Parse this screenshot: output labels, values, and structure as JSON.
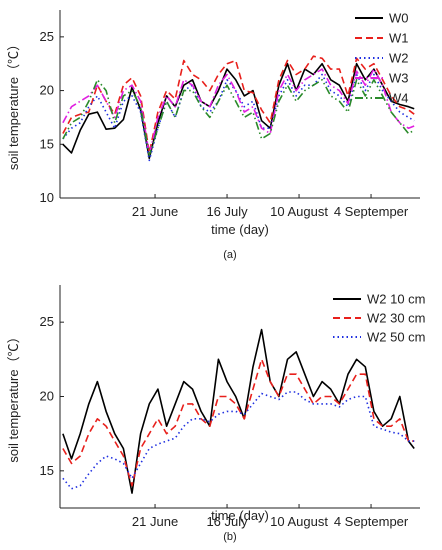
{
  "chart_data": [
    {
      "type": "line",
      "caption": "(a)",
      "xlabel": "time (day)",
      "ylabel": "soil temperature（℃）",
      "ylim": [
        10,
        27.5
      ],
      "yticks": [
        10,
        15,
        20,
        25
      ],
      "x": [
        1,
        4,
        7,
        10,
        13,
        16,
        19,
        22,
        25,
        28,
        31,
        34,
        37,
        40,
        43,
        46,
        49,
        52,
        55,
        58,
        61,
        64,
        67,
        70,
        73,
        76,
        79,
        82,
        85,
        88,
        91,
        94,
        97,
        100,
        103,
        106
      ],
      "x_tick_labels": [
        {
          "x": 33,
          "label": "21 June"
        },
        {
          "x": 58,
          "label": "16 July"
        },
        {
          "x": 83,
          "label": "10 August"
        },
        {
          "x": 108,
          "label": "4 Septemper"
        }
      ],
      "xlim": [
        0,
        125
      ],
      "legend_position": "top-right",
      "series": [
        {
          "name": "W0",
          "color": "#000000",
          "dash": "solid",
          "values": [
            15.0,
            14.2,
            16.3,
            17.8,
            18.0,
            16.4,
            16.5,
            17.3,
            20.3,
            18.2,
            13.7,
            17.0,
            19.5,
            18.5,
            20.5,
            21.0,
            19.0,
            18.5,
            20.0,
            22.0,
            21.0,
            19.5,
            20.0,
            17.2,
            16.5,
            20.5,
            22.5,
            20.0,
            22.0,
            21.5,
            22.5,
            21.0,
            20.5,
            19.0,
            22.5,
            21.0
          ]
        },
        {
          "name": "W1",
          "color": "#e8201c",
          "dash": "dashed",
          "values": [
            16.0,
            17.5,
            17.8,
            18.0,
            20.5,
            19.0,
            17.8,
            20.5,
            21.2,
            19.5,
            14.2,
            18.0,
            20.0,
            19.2,
            22.8,
            21.5,
            21.0,
            20.0,
            21.5,
            22.5,
            22.8,
            20.0,
            19.8,
            18.2,
            17.0,
            21.0,
            22.8,
            21.5,
            22.0,
            23.2,
            23.0,
            22.0,
            22.0,
            19.5,
            23.0,
            22.0
          ]
        },
        {
          "name": "W2",
          "color": "#1f2fe0",
          "dash": "dotted",
          "values": [
            15.5,
            16.5,
            17.0,
            18.5,
            19.5,
            18.0,
            16.5,
            19.0,
            19.5,
            18.0,
            13.5,
            16.5,
            19.0,
            17.5,
            20.0,
            20.5,
            18.5,
            18.0,
            19.0,
            21.0,
            20.0,
            18.5,
            19.0,
            16.5,
            16.5,
            19.5,
            21.0,
            19.5,
            20.5,
            20.5,
            21.5,
            20.0,
            19.5,
            18.5,
            21.5,
            20.0
          ]
        },
        {
          "name": "W3",
          "color": "#e020e0",
          "dash": "dashdot",
          "values": [
            17.0,
            18.5,
            19.0,
            19.5,
            20.5,
            19.0,
            17.5,
            20.0,
            20.5,
            19.0,
            14.0,
            17.5,
            19.5,
            18.5,
            21.0,
            20.5,
            19.0,
            18.5,
            20.5,
            21.5,
            20.0,
            18.0,
            18.5,
            16.5,
            16.0,
            20.0,
            21.5,
            20.0,
            21.0,
            21.5,
            22.0,
            20.5,
            20.0,
            18.8,
            21.8,
            20.5
          ]
        },
        {
          "name": "W4",
          "color": "#2a8a2a",
          "dash": "dashdotdot",
          "values": [
            15.5,
            17.0,
            17.5,
            19.0,
            21.0,
            20.0,
            17.0,
            19.5,
            20.0,
            18.5,
            14.0,
            16.5,
            19.0,
            17.5,
            20.0,
            20.0,
            18.5,
            17.5,
            19.0,
            20.5,
            19.0,
            17.5,
            18.0,
            15.5,
            16.0,
            19.0,
            20.5,
            19.0,
            20.0,
            20.5,
            21.0,
            19.5,
            19.0,
            18.0,
            21.0,
            19.5
          ]
        }
      ],
      "series_tail_x": [
        109,
        112,
        115,
        118,
        121,
        123
      ],
      "series_tail": {
        "W0": [
          22.0,
          20.5,
          19.0,
          18.7,
          18.5,
          18.3
        ],
        "W1": [
          22.5,
          21.0,
          19.5,
          18.5,
          18.2,
          17.8
        ],
        "W2": [
          21.5,
          20.0,
          19.0,
          18.0,
          17.5,
          17.2
        ],
        "W3": [
          22.0,
          20.5,
          18.0,
          17.0,
          16.5,
          16.7
        ],
        "W4": [
          21.0,
          19.5,
          18.0,
          17.0,
          16.0,
          16.3
        ]
      }
    },
    {
      "type": "line",
      "caption": "(b)",
      "xlabel": "time (day)",
      "ylabel": "soil temperature（℃）",
      "ylim": [
        12.5,
        27.5
      ],
      "yticks": [
        15,
        20,
        25
      ],
      "x": [
        1,
        4,
        7,
        10,
        13,
        16,
        19,
        22,
        25,
        28,
        31,
        34,
        37,
        40,
        43,
        46,
        49,
        52,
        55,
        58,
        61,
        64,
        67,
        70,
        73,
        76,
        79,
        82,
        85,
        88,
        91,
        94,
        97,
        100,
        103,
        106,
        109,
        112,
        115,
        118,
        121,
        123
      ],
      "x_tick_labels": [
        {
          "x": 33,
          "label": "21 June"
        },
        {
          "x": 58,
          "label": "16 July"
        },
        {
          "x": 83,
          "label": "10 August"
        },
        {
          "x": 108,
          "label": "4 Septemper"
        }
      ],
      "xlim": [
        0,
        125
      ],
      "legend_position": "top-right",
      "series": [
        {
          "name": "W2 10 cm",
          "color": "#000000",
          "dash": "solid",
          "values": [
            17.5,
            15.8,
            17.5,
            19.5,
            21.0,
            19.0,
            17.5,
            16.5,
            13.5,
            17.5,
            19.5,
            20.5,
            18.0,
            19.5,
            21.0,
            20.5,
            19.0,
            18.0,
            22.5,
            21.0,
            20.0,
            18.5,
            22.0,
            24.5,
            21.0,
            20.0,
            22.5,
            23.0,
            21.5,
            20.0,
            21.0,
            20.5,
            19.5,
            21.5,
            22.5,
            22.0,
            19.0,
            18.0,
            18.5,
            20.0,
            17.0,
            16.5
          ]
        },
        {
          "name": "W2 30 cm",
          "color": "#e8201c",
          "dash": "dashed",
          "values": [
            16.5,
            15.5,
            16.0,
            17.5,
            18.5,
            18.0,
            17.0,
            16.0,
            14.0,
            16.5,
            17.5,
            18.5,
            17.5,
            18.0,
            19.5,
            19.5,
            18.5,
            18.0,
            20.0,
            20.0,
            19.5,
            18.5,
            20.5,
            22.5,
            21.0,
            20.0,
            21.5,
            21.5,
            20.5,
            19.5,
            20.0,
            20.0,
            19.5,
            20.5,
            21.5,
            21.5,
            18.5,
            18.0,
            18.0,
            18.5,
            17.0,
            17.0
          ]
        },
        {
          "name": "W2 50 cm",
          "color": "#1f2fe0",
          "dash": "dotted",
          "values": [
            14.5,
            13.8,
            14.0,
            14.8,
            15.5,
            16.0,
            15.8,
            15.5,
            14.5,
            15.5,
            16.5,
            16.8,
            17.0,
            17.2,
            18.0,
            18.5,
            18.5,
            18.3,
            18.8,
            19.0,
            19.0,
            18.8,
            19.5,
            20.2,
            20.0,
            19.8,
            20.3,
            20.3,
            19.8,
            19.5,
            19.5,
            19.5,
            19.3,
            19.8,
            20.0,
            20.0,
            18.0,
            17.8,
            17.6,
            17.5,
            17.0,
            17.0
          ]
        }
      ]
    }
  ]
}
